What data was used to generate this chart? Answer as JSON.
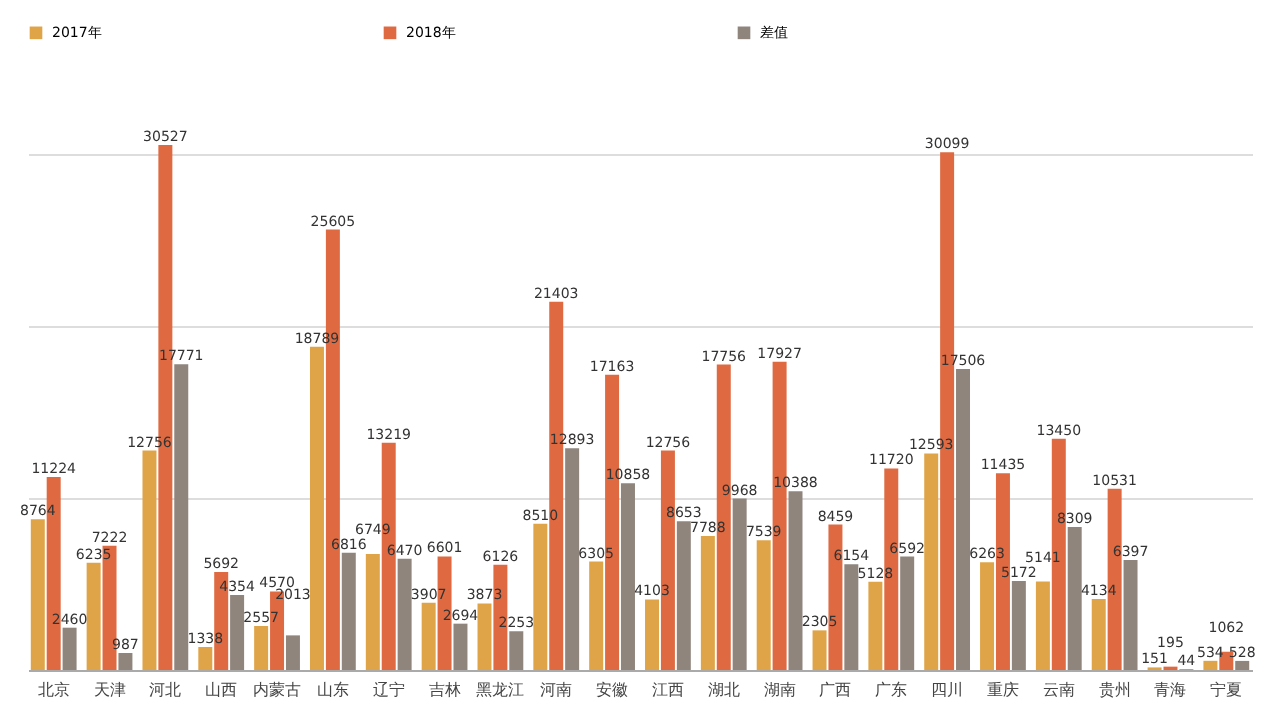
{
  "chart_data": {
    "type": "bar",
    "categories": [
      "北京",
      "天津",
      "河北",
      "山西",
      "内蒙古",
      "山东",
      "辽宁",
      "吉林",
      "黑龙江",
      "河南",
      "安徽",
      "江西",
      "湖北",
      "湖南",
      "广西",
      "广东",
      "四川",
      "重庆",
      "云南",
      "贵州",
      "青海",
      "宁夏"
    ],
    "series": [
      {
        "name": "2017年",
        "color": "#e0a448",
        "values": [
          8764,
          6235,
          12756,
          1338,
          2557,
          18789,
          6749,
          3907,
          3873,
          8510,
          6305,
          4103,
          7788,
          7539,
          2305,
          5128,
          12593,
          6263,
          5141,
          4134,
          151,
          534
        ]
      },
      {
        "name": "2018年",
        "color": "#df6a42",
        "values": [
          11224,
          7222,
          30527,
          5692,
          4570,
          25605,
          13219,
          6601,
          6126,
          21403,
          17163,
          12756,
          17756,
          17927,
          8459,
          11720,
          30099,
          11435,
          13450,
          10531,
          195,
          1062
        ]
      },
      {
        "name": "差值",
        "color": "#8f857d",
        "values": [
          2460,
          987,
          17771,
          4354,
          2013,
          6816,
          6470,
          2694,
          2253,
          12893,
          10858,
          8653,
          9968,
          10388,
          6154,
          6592,
          17506,
          5172,
          8309,
          6397,
          44,
          528
        ]
      }
    ],
    "yticks": [
      {
        "value": 0,
        "label": null
      },
      {
        "value": 10000,
        "label": null
      },
      {
        "value": 20000,
        "label": null
      },
      {
        "value": 30000,
        "label": null
      }
    ],
    "grid": "y",
    "legend": "top",
    "data_labels": true,
    "tick_labels": "x"
  }
}
